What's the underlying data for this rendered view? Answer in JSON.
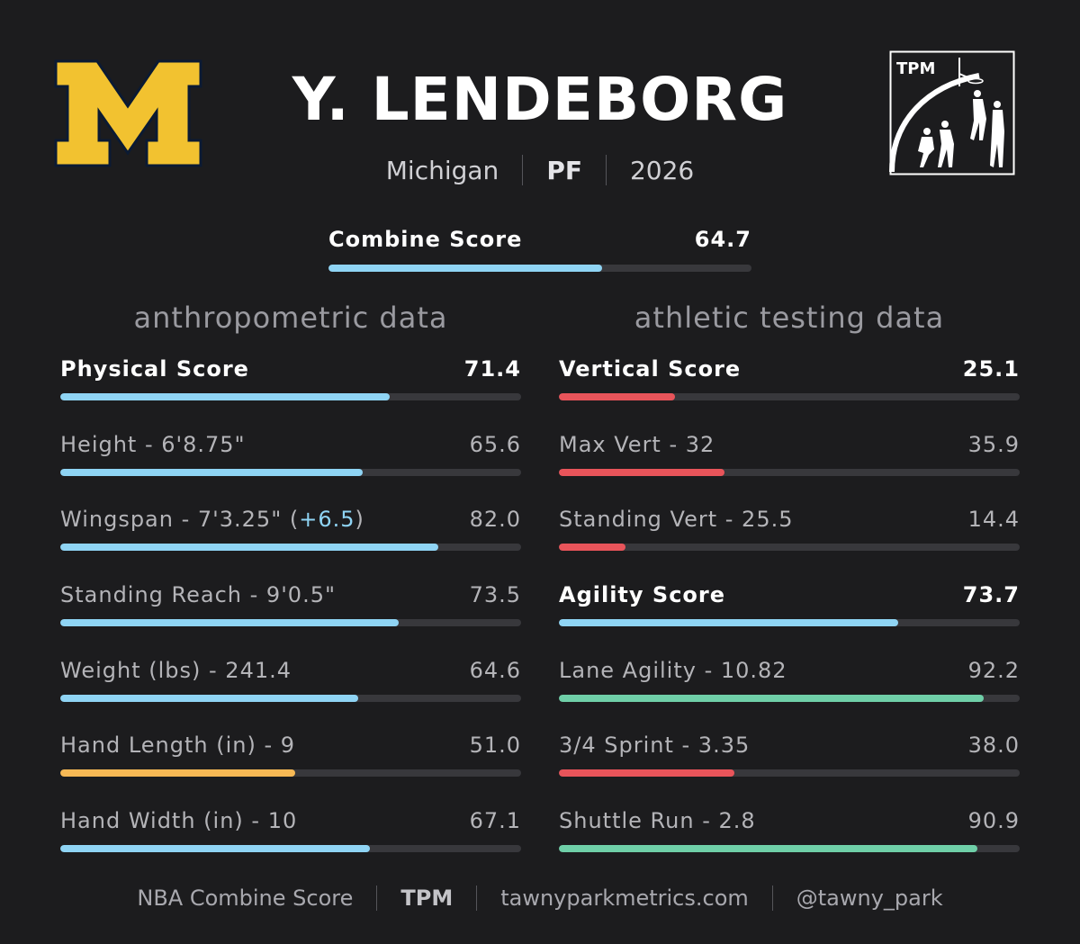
{
  "player": {
    "name": "Y. LENDEBORG",
    "team": "Michigan",
    "position": "PF",
    "year": "2026"
  },
  "brand": {
    "tpm_logo_text": "TPM"
  },
  "combine": {
    "label": "Combine Score",
    "value": "64.7",
    "pct": 64.7
  },
  "sections": {
    "anthropometric": "anthropometric data",
    "athletic": "athletic testing data"
  },
  "colors": {
    "blue": "#8fd4f4",
    "red": "#e8545a",
    "orange": "#f7b955",
    "green": "#6fcfa8",
    "track": "#38383c",
    "michigan_maize": "#f2c230"
  },
  "anthropometric": [
    {
      "label": "Physical Score",
      "value": "71.4",
      "pct": 71.4,
      "color": "#8fd4f4",
      "bold": true
    },
    {
      "label": "Height - 6'8.75\"",
      "value": "65.6",
      "pct": 65.6,
      "color": "#8fd4f4"
    },
    {
      "label": "Wingspan - 7'3.25\" (",
      "label_plus": "+6.5",
      "label_suffix": ")",
      "value": "82.0",
      "pct": 82.0,
      "color": "#8fd4f4"
    },
    {
      "label": "Standing Reach - 9'0.5\"",
      "value": "73.5",
      "pct": 73.5,
      "color": "#8fd4f4"
    },
    {
      "label": "Weight (lbs) - 241.4",
      "value": "64.6",
      "pct": 64.6,
      "color": "#8fd4f4"
    },
    {
      "label": "Hand Length (in) - 9",
      "value": "51.0",
      "pct": 51.0,
      "color": "#f7b955"
    },
    {
      "label": "Hand Width (in) - 10",
      "value": "67.1",
      "pct": 67.1,
      "color": "#8fd4f4"
    }
  ],
  "athletic": [
    {
      "label": "Vertical Score",
      "value": "25.1",
      "pct": 25.1,
      "color": "#e8545a",
      "bold": true
    },
    {
      "label": "Max Vert - 32",
      "value": "35.9",
      "pct": 35.9,
      "color": "#e8545a"
    },
    {
      "label": "Standing Vert - 25.5",
      "value": "14.4",
      "pct": 14.4,
      "color": "#e8545a"
    },
    {
      "label": "Agility Score",
      "value": "73.7",
      "pct": 73.7,
      "color": "#8fd4f4",
      "bold": true
    },
    {
      "label": "Lane Agility - 10.82",
      "value": "92.2",
      "pct": 92.2,
      "color": "#6fcfa8"
    },
    {
      "label": "3/4 Sprint - 3.35",
      "value": "38.0",
      "pct": 38.0,
      "color": "#e8545a"
    },
    {
      "label": "Shuttle Run - 2.8",
      "value": "90.9",
      "pct": 90.9,
      "color": "#6fcfa8"
    }
  ],
  "footer": {
    "source": "NBA Combine Score",
    "brand": "TPM",
    "site": "tawnyparkmetrics.com",
    "handle": "@tawny_park"
  }
}
